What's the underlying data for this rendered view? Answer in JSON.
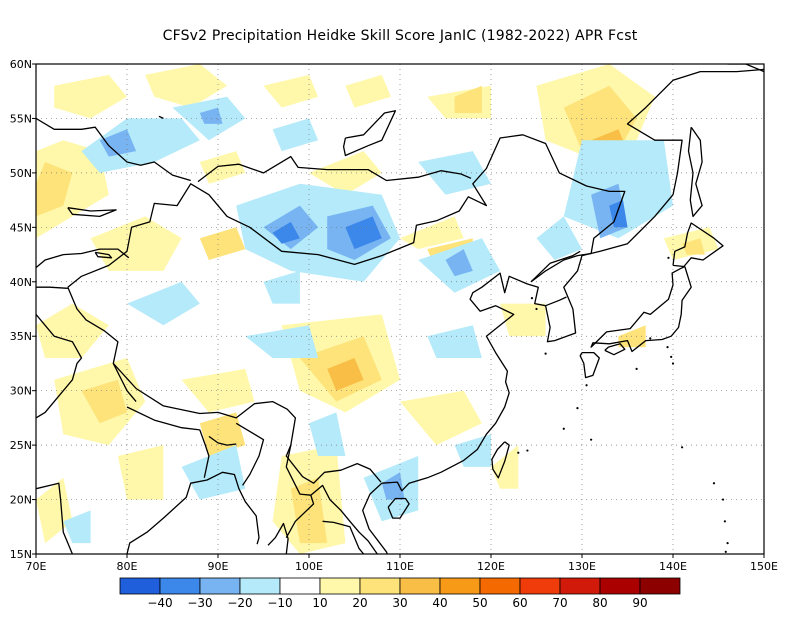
{
  "title": "CFSv2  Precipitation Heidke Skill Score JanIC (1982-2022) APR Fcst",
  "map": {
    "lon_range": [
      70,
      150
    ],
    "lat_range": [
      15,
      60
    ],
    "lon_ticks": [
      "70E",
      "80E",
      "90E",
      "100E",
      "110E",
      "120E",
      "130E",
      "140E",
      "150E"
    ],
    "lat_ticks": [
      "15N",
      "20N",
      "25N",
      "30N",
      "35N",
      "40N",
      "45N",
      "50N",
      "55N",
      "60N"
    ],
    "grid": true,
    "land_outline_color": "#000000",
    "frame_color": "#000000"
  },
  "colorbar": {
    "colors": [
      "#1f5fdc",
      "#3c87ea",
      "#78b4f2",
      "#b4eafa",
      "#ffffff",
      "#fff8aa",
      "#fde37a",
      "#f9be46",
      "#f79a18",
      "#f56a00",
      "#f03c0a",
      "#d21a0a",
      "#aa0000",
      "#8c0000"
    ],
    "labels": [
      "-40",
      "-30",
      "-20",
      "-10",
      "10",
      "20",
      "30",
      "40",
      "50",
      "60",
      "70",
      "80",
      "90"
    ]
  },
  "shading_palette": {
    "neg10": "#b4eafa",
    "neg20": "#78b4f2",
    "neg30": "#3c87ea",
    "pos10": "#fff8aa",
    "pos20": "#fde37a",
    "pos30": "#f9be46"
  }
}
